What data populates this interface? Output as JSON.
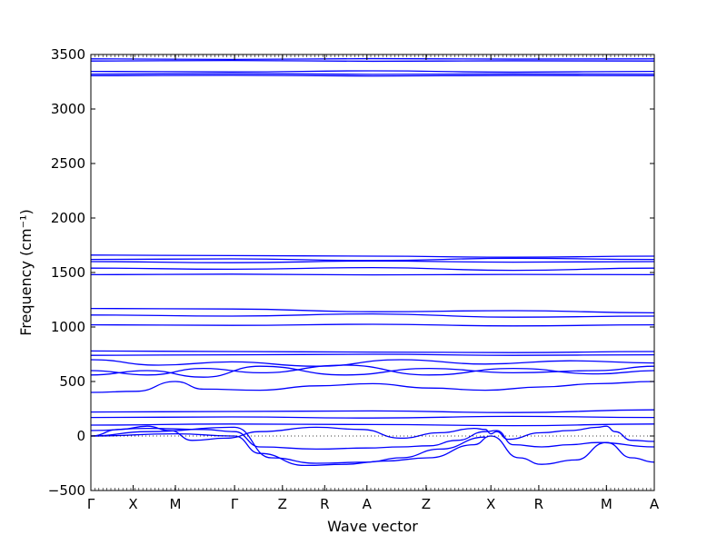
{
  "chart_data": {
    "type": "line",
    "title": "",
    "xlabel": "Wave vector",
    "ylabel": "Frequency (cm⁻¹)",
    "ylim": [
      -500,
      3500
    ],
    "yticks": [
      -500,
      0,
      500,
      1000,
      1500,
      2000,
      2500,
      3000,
      3500
    ],
    "ytick_labels": [
      "−500",
      "0",
      "500",
      "1000",
      "1500",
      "2000",
      "2500",
      "3000",
      "3500"
    ],
    "xlim": [
      0,
      1
    ],
    "high_symmetry_points": [
      {
        "label": "Γ",
        "x": 0.0
      },
      {
        "label": "X",
        "x": 0.075
      },
      {
        "label": "M",
        "x": 0.15
      },
      {
        "label": "Γ",
        "x": 0.255
      },
      {
        "label": "Z",
        "x": 0.34
      },
      {
        "label": "R",
        "x": 0.415
      },
      {
        "label": "A",
        "x": 0.49
      },
      {
        "label": "Z",
        "x": 0.595
      },
      {
        "label": "X",
        "x": 0.71
      },
      {
        "label": "R",
        "x": 0.795
      },
      {
        "label": "M",
        "x": 0.915
      },
      {
        "label": "A",
        "x": 1.0
      }
    ],
    "line_color": "#0000ff",
    "grid": false,
    "zero_reference_line": true,
    "series": [
      {
        "x": [
          0,
          0.25,
          0.5,
          0.75,
          1
        ],
        "y": [
          3460,
          3455,
          3462,
          3458,
          3460
        ]
      },
      {
        "x": [
          0,
          0.25,
          0.5,
          0.75,
          1
        ],
        "y": [
          3440,
          3445,
          3438,
          3442,
          3440
        ]
      },
      {
        "x": [
          0,
          0.25,
          0.5,
          0.75,
          1
        ],
        "y": [
          3345,
          3340,
          3350,
          3338,
          3345
        ]
      },
      {
        "x": [
          0,
          0.25,
          0.5,
          0.75,
          1
        ],
        "y": [
          3320,
          3325,
          3318,
          3322,
          3320
        ]
      },
      {
        "x": [
          0,
          0.25,
          0.5,
          0.75,
          1
        ],
        "y": [
          3305,
          3310,
          3302,
          3308,
          3305
        ]
      },
      {
        "x": [
          0,
          0.25,
          0.5,
          0.75,
          1
        ],
        "y": [
          1660,
          1655,
          1650,
          1640,
          1650
        ]
      },
      {
        "x": [
          0,
          0.25,
          0.5,
          0.75,
          1
        ],
        "y": [
          1620,
          1625,
          1610,
          1630,
          1620
        ]
      },
      {
        "x": [
          0,
          0.25,
          0.5,
          0.75,
          1
        ],
        "y": [
          1600,
          1590,
          1605,
          1595,
          1600
        ]
      },
      {
        "x": [
          0,
          0.25,
          0.5,
          0.75,
          1
        ],
        "y": [
          1540,
          1530,
          1545,
          1520,
          1540
        ]
      },
      {
        "x": [
          0,
          0.25,
          0.5,
          0.75,
          1
        ],
        "y": [
          1480,
          1485,
          1478,
          1482,
          1480
        ]
      },
      {
        "x": [
          0,
          0.25,
          0.5,
          0.75,
          1
        ],
        "y": [
          1170,
          1165,
          1140,
          1150,
          1130
        ]
      },
      {
        "x": [
          0,
          0.25,
          0.5,
          0.75,
          1
        ],
        "y": [
          1110,
          1100,
          1120,
          1090,
          1100
        ]
      },
      {
        "x": [
          0,
          0.25,
          0.5,
          0.75,
          1
        ],
        "y": [
          1020,
          1015,
          1025,
          1010,
          1020
        ]
      },
      {
        "x": [
          0,
          0.25,
          0.5,
          0.75,
          1
        ],
        "y": [
          780,
          775,
          770,
          765,
          775
        ]
      },
      {
        "x": [
          0,
          0.25,
          0.5,
          0.75,
          1
        ],
        "y": [
          740,
          745,
          750,
          740,
          745
        ]
      },
      {
        "x": [
          0,
          0.12,
          0.25,
          0.4,
          0.55,
          0.7,
          0.85,
          1
        ],
        "y": [
          700,
          650,
          680,
          640,
          700,
          660,
          690,
          670
        ]
      },
      {
        "x": [
          0,
          0.1,
          0.2,
          0.3,
          0.45,
          0.6,
          0.75,
          0.9,
          1
        ],
        "y": [
          600,
          560,
          620,
          580,
          650,
          560,
          620,
          570,
          600
        ]
      },
      {
        "x": [
          0,
          0.1,
          0.2,
          0.3,
          0.45,
          0.6,
          0.75,
          0.9,
          1
        ],
        "y": [
          560,
          600,
          540,
          640,
          560,
          620,
          580,
          600,
          640
        ]
      },
      {
        "x": [
          0,
          0.08,
          0.15,
          0.2,
          0.3,
          0.4,
          0.5,
          0.6,
          0.7,
          0.8,
          0.9,
          1
        ],
        "y": [
          400,
          410,
          500,
          430,
          420,
          460,
          480,
          440,
          420,
          450,
          480,
          500
        ]
      },
      {
        "x": [
          0,
          0.25,
          0.5,
          0.75,
          1
        ],
        "y": [
          220,
          225,
          230,
          215,
          240
        ]
      },
      {
        "x": [
          0,
          0.25,
          0.5,
          0.75,
          1
        ],
        "y": [
          170,
          175,
          165,
          180,
          170
        ]
      },
      {
        "x": [
          0,
          0.25,
          0.5,
          0.75,
          1
        ],
        "y": [
          100,
          110,
          105,
          95,
          110
        ]
      },
      {
        "x": [
          0,
          0.05,
          0.1,
          0.14,
          0.18,
          0.24,
          0.3,
          0.4,
          0.48,
          0.55,
          0.62,
          0.68,
          0.7,
          0.71,
          0.72,
          0.74,
          0.8,
          0.85,
          0.9,
          0.915,
          0.93,
          0.96,
          1
        ],
        "y": [
          0,
          60,
          90,
          50,
          -40,
          -20,
          40,
          80,
          60,
          -20,
          30,
          70,
          60,
          20,
          40,
          -30,
          30,
          50,
          80,
          90,
          40,
          -40,
          -50
        ]
      },
      {
        "x": [
          0,
          0.1,
          0.2,
          0.255,
          0.3,
          0.4,
          0.49,
          0.55,
          0.6,
          0.65,
          0.7,
          0.72,
          0.75,
          0.8,
          0.85,
          0.9,
          1
        ],
        "y": [
          50,
          70,
          60,
          40,
          -100,
          -120,
          -110,
          -100,
          -90,
          -40,
          40,
          50,
          -80,
          -100,
          -80,
          -60,
          -100
        ]
      },
      {
        "x": [
          0,
          0.15,
          0.255,
          0.3,
          0.38,
          0.45,
          0.52,
          0.6,
          0.68,
          0.71,
          0.76,
          0.8,
          0.86,
          0.915,
          0.96,
          1
        ],
        "y": [
          0,
          20,
          0,
          -160,
          -270,
          -260,
          -230,
          -200,
          -80,
          0,
          -200,
          -260,
          -220,
          -60,
          -200,
          -240
        ]
      },
      {
        "x": [
          0,
          0.1,
          0.255,
          0.32,
          0.4,
          0.49,
          0.55,
          0.62,
          0.7
        ],
        "y": [
          0,
          40,
          80,
          -200,
          -250,
          -240,
          -200,
          -120,
          -10
        ]
      }
    ]
  }
}
